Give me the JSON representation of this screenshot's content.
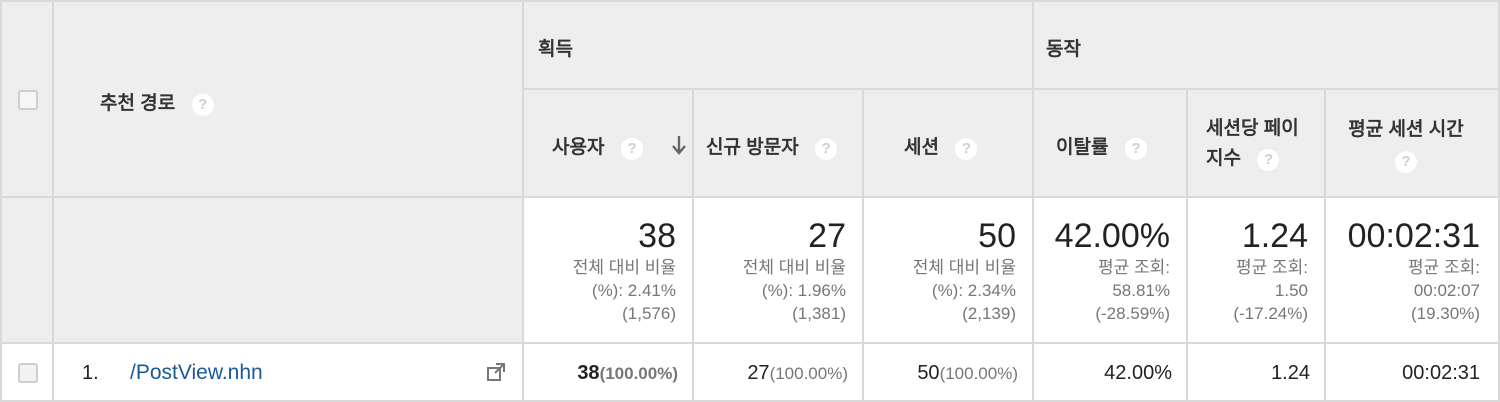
{
  "table": {
    "dimension_header": "추천 경로",
    "groups": {
      "acquisition": "획득",
      "behavior": "동작"
    },
    "columns": {
      "users": "사용자",
      "new_visitors": "신규 방문자",
      "sessions": "세션",
      "bounce_rate": "이탈률",
      "pages_per_session_line1": "세션당 페이",
      "pages_per_session_line2": "지수",
      "avg_session_duration": "평균 세션 시간"
    },
    "help_glyph": "?",
    "totals": {
      "users": {
        "value": "38",
        "line1": "전체 대비 비율",
        "line2": "(%): 2.41%",
        "line3": "(1,576)"
      },
      "new_visitors": {
        "value": "27",
        "line1": "전체 대비 비율",
        "line2": "(%): 1.96%",
        "line3": "(1,381)"
      },
      "sessions": {
        "value": "50",
        "line1": "전체 대비 비율",
        "line2": "(%): 2.34%",
        "line3": "(2,139)"
      },
      "bounce_rate": {
        "value": "42.00%",
        "line1": "평균 조회:",
        "line2": "58.81%",
        "line3": "(-28.59%)"
      },
      "pages_per_session": {
        "value": "1.24",
        "line1": "평균 조회:",
        "line2": "1.50",
        "line3": "(-17.24%)"
      },
      "avg_session_duration": {
        "value": "00:02:31",
        "line1": "평균 조회:",
        "line2": "00:02:07",
        "line3": "(19.30%)"
      }
    },
    "rows": [
      {
        "index": "1.",
        "path": "/PostView.nhn",
        "users": "38",
        "users_pct": "(100.00%)",
        "new_visitors": "27",
        "new_visitors_pct": "(100.00%)",
        "sessions": "50",
        "sessions_pct": "(100.00%)",
        "bounce_rate": "42.00%",
        "pages_per_session": "1.24",
        "avg_session_duration": "00:02:31"
      }
    ]
  },
  "colors": {
    "header_bg": "#eeeeee",
    "border": "#d9d9d9",
    "link": "#1a5a96"
  }
}
